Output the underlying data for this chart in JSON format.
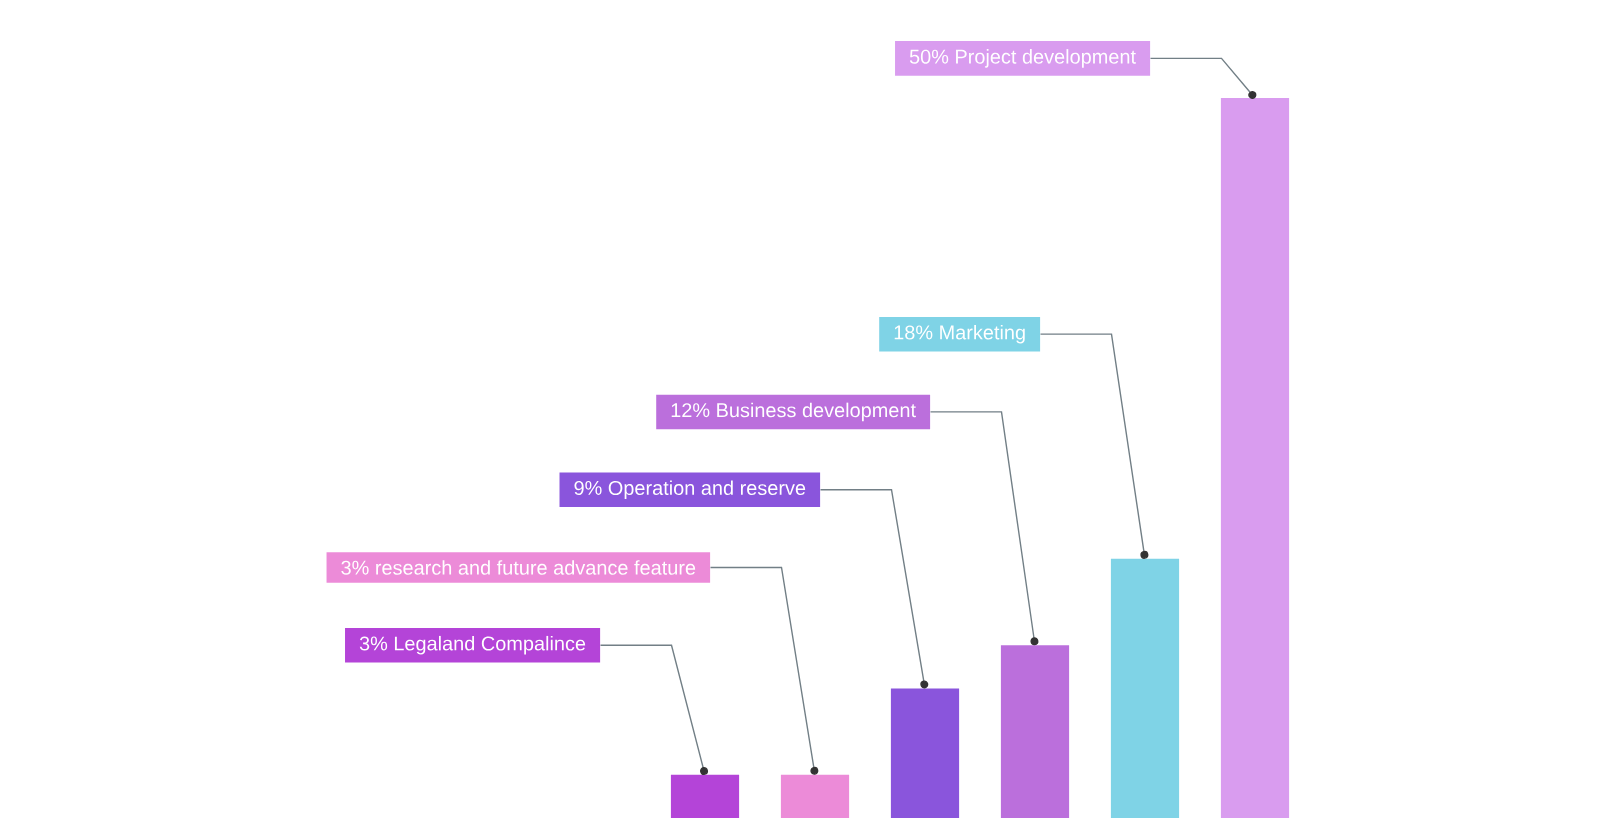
{
  "chart_data": {
    "type": "bar",
    "categories": [
      null,
      null,
      null,
      null,
      null,
      null
    ],
    "values": [
      3,
      3,
      9,
      12,
      18,
      50
    ],
    "colors": [
      "#b444d8",
      "#ec8bd8",
      "#8a55dc",
      "#bb6fdc",
      "#7fd3e6",
      "#d99cef"
    ],
    "value_labels": [
      "3% Legaland Compalince",
      "3% research and future advance feature",
      "9% Operation and reserve",
      "12% Business development",
      "18% Marketing",
      "50% Project development"
    ]
  }
}
